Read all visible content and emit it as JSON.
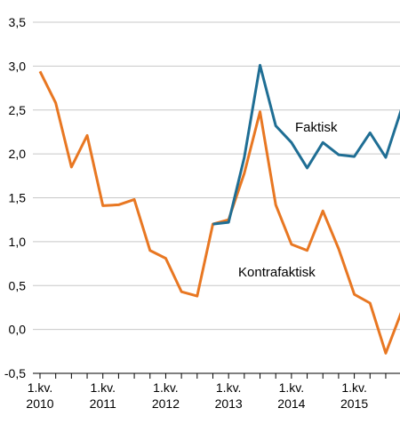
{
  "chart_data": {
    "type": "line",
    "x": [
      "2010Q1",
      "2010Q2",
      "2010Q3",
      "2010Q4",
      "2011Q1",
      "2011Q2",
      "2011Q3",
      "2011Q4",
      "2012Q1",
      "2012Q2",
      "2012Q3",
      "2012Q4",
      "2013Q1",
      "2013Q2",
      "2013Q3",
      "2013Q4",
      "2014Q1",
      "2014Q2",
      "2014Q3",
      "2014Q4",
      "2015Q1",
      "2015Q2",
      "2015Q3",
      "2015Q4"
    ],
    "series": [
      {
        "name": "Kontrafaktisk",
        "color": "#E87722",
        "values": [
          2.94,
          2.58,
          1.85,
          2.21,
          1.41,
          1.42,
          1.48,
          0.9,
          0.81,
          0.43,
          0.38,
          1.2,
          1.25,
          1.78,
          2.48,
          1.42,
          0.97,
          0.9,
          1.35,
          0.92,
          0.4,
          0.3,
          -0.27,
          0.2
        ]
      },
      {
        "name": "Faktisk",
        "color": "#1F6E94",
        "values": [
          null,
          null,
          null,
          null,
          null,
          null,
          null,
          null,
          null,
          null,
          null,
          1.2,
          1.22,
          1.96,
          3.01,
          2.32,
          2.13,
          1.84,
          2.13,
          1.99,
          1.97,
          2.24,
          1.96,
          2.51
        ]
      }
    ],
    "y_ticks": [
      "3,5",
      "3,0",
      "2,5",
      "2,0",
      "1,5",
      "1,0",
      "0,5",
      "0,0",
      "-0,5"
    ],
    "x_tick_labels": [
      {
        "quarter": "1.kv.",
        "year": "2010"
      },
      {
        "quarter": "1.kv.",
        "year": "2011"
      },
      {
        "quarter": "1.kv.",
        "year": "2012"
      },
      {
        "quarter": "1.kv.",
        "year": "2013"
      },
      {
        "quarter": "1.kv.",
        "year": "2014"
      },
      {
        "quarter": "1.kv.",
        "year": "2015"
      }
    ],
    "ylim": [
      -0.5,
      3.5
    ],
    "grid": "horizontal",
    "title": "",
    "xlabel": "",
    "ylabel": ""
  }
}
